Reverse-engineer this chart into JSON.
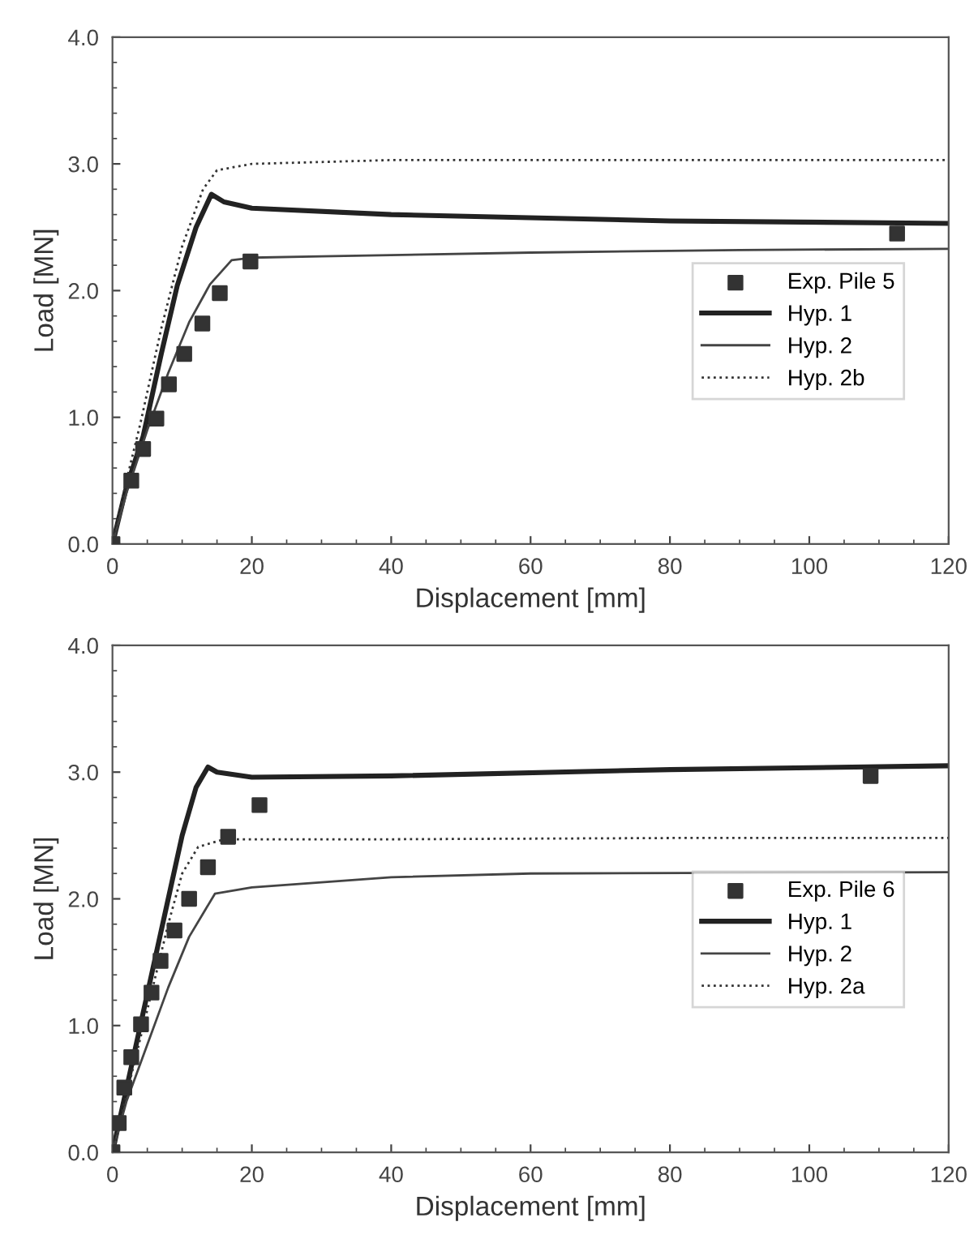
{
  "chart_data": [
    {
      "type": "line",
      "xlabel": "Displacement [mm]",
      "ylabel": "Load [MN]",
      "xlim": [
        0,
        120
      ],
      "ylim": [
        0,
        4.0
      ],
      "xticks": [
        0,
        20,
        40,
        60,
        80,
        100,
        120
      ],
      "yticks": [
        {
          "value": 0,
          "label": "0.0"
        },
        {
          "value": 1,
          "label": "1.0"
        },
        {
          "value": 2,
          "label": "2.0"
        },
        {
          "value": 3,
          "label": "3.0"
        },
        {
          "value": 4,
          "label": "4.0"
        }
      ],
      "grid": false,
      "legend": "right",
      "series": [
        {
          "name": "Exp. Pile 5",
          "type": "scatter",
          "marker": "square",
          "color": "#333333",
          "x": [
            0,
            2.7,
            4.4,
            6.3,
            8.1,
            10.3,
            12.9,
            15.4,
            19.8,
            112.6
          ],
          "values": [
            0,
            0.5,
            0.75,
            0.99,
            1.26,
            1.5,
            1.74,
            1.98,
            2.23,
            2.45
          ]
        },
        {
          "name": "Hyp. 1",
          "type": "line",
          "line_style": "solid",
          "color": "#222222",
          "x": [
            0,
            2,
            4.4,
            7,
            9.3,
            12,
            14.2,
            16,
            20,
            40,
            80,
            120
          ],
          "values": [
            0,
            0.45,
            0.85,
            1.5,
            2.04,
            2.5,
            2.76,
            2.7,
            2.65,
            2.6,
            2.55,
            2.53
          ]
        },
        {
          "name": "Hyp. 2",
          "type": "line",
          "line_style": "solid",
          "color": "#444444",
          "x": [
            0,
            2,
            5,
            8,
            11,
            14,
            17.1,
            20,
            30,
            60,
            90,
            120
          ],
          "values": [
            0,
            0.4,
            0.9,
            1.35,
            1.75,
            2.05,
            2.24,
            2.26,
            2.27,
            2.3,
            2.32,
            2.33
          ]
        },
        {
          "name": "Hyp. 2b",
          "type": "line",
          "line_style": "dotted",
          "color": "#333333",
          "x": [
            0,
            2,
            4,
            7,
            10,
            13,
            15,
            20,
            40,
            80,
            120
          ],
          "values": [
            0,
            0.5,
            0.95,
            1.7,
            2.35,
            2.8,
            2.95,
            3.0,
            3.03,
            3.03,
            3.03
          ]
        }
      ]
    },
    {
      "type": "line",
      "xlabel": "Displacement [mm]",
      "ylabel": "Load [MN]",
      "xlim": [
        0,
        120
      ],
      "ylim": [
        0,
        4.0
      ],
      "xticks": [
        0,
        20,
        40,
        60,
        80,
        100,
        120
      ],
      "yticks": [
        {
          "value": 0,
          "label": "0.0"
        },
        {
          "value": 1,
          "label": "1.0"
        },
        {
          "value": 2,
          "label": "2.0"
        },
        {
          "value": 3,
          "label": "3.0"
        },
        {
          "value": 4,
          "label": "4.0"
        }
      ],
      "grid": false,
      "legend": "right",
      "series": [
        {
          "name": "Exp. Pile 6",
          "type": "scatter",
          "marker": "square",
          "color": "#333333",
          "x": [
            0,
            0.9,
            1.7,
            2.7,
            4.1,
            5.6,
            6.9,
            8.9,
            11,
            13.7,
            16.6,
            21.1,
            108.8
          ],
          "values": [
            0,
            0.23,
            0.51,
            0.75,
            1.01,
            1.26,
            1.51,
            1.75,
            2.0,
            2.25,
            2.49,
            2.74,
            2.97
          ]
        },
        {
          "name": "Hyp. 1",
          "type": "line",
          "line_style": "solid",
          "color": "#222222",
          "x": [
            0,
            2,
            4,
            6,
            8,
            10,
            12,
            13.7,
            15,
            20,
            40,
            80,
            120
          ],
          "values": [
            0,
            0.5,
            1.0,
            1.5,
            2.0,
            2.5,
            2.88,
            3.04,
            3.0,
            2.96,
            2.97,
            3.02,
            3.05
          ]
        },
        {
          "name": "Hyp. 2",
          "type": "line",
          "line_style": "solid",
          "color": "#444444",
          "x": [
            0,
            2,
            5,
            8,
            11,
            14.7,
            20,
            40,
            60,
            120
          ],
          "values": [
            0,
            0.4,
            0.85,
            1.3,
            1.7,
            2.04,
            2.09,
            2.17,
            2.2,
            2.21
          ]
        },
        {
          "name": "Hyp. 2a",
          "type": "line",
          "line_style": "dotted",
          "color": "#333333",
          "x": [
            0,
            2,
            4,
            6,
            8,
            10,
            12.3,
            16,
            40,
            80,
            120
          ],
          "values": [
            0,
            0.45,
            0.9,
            1.35,
            1.8,
            2.2,
            2.41,
            2.47,
            2.47,
            2.48,
            2.48
          ]
        }
      ]
    }
  ]
}
